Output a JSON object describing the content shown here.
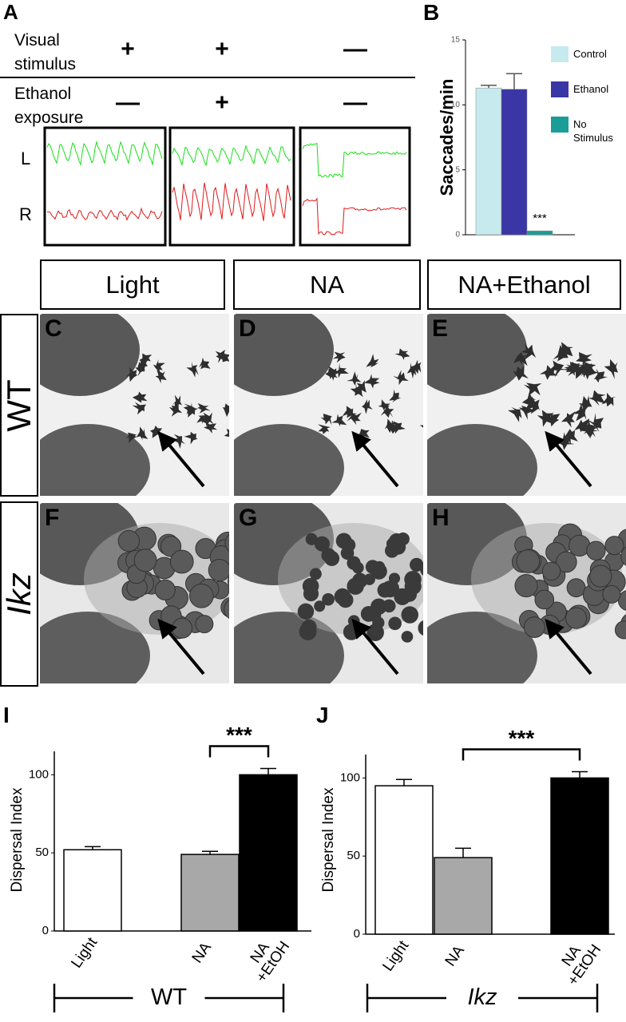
{
  "figure": {
    "panel_a": {
      "label": "A",
      "row_labels": [
        "Visual stimulus",
        "Ethanol exposure"
      ],
      "visual_stimulus": [
        "+",
        "+",
        "—"
      ],
      "ethanol_exposure": [
        "—",
        "+",
        "—"
      ],
      "trace_labels": [
        "L",
        "R"
      ]
    },
    "column_headers": [
      "Light",
      "NA",
      "NA+Ethanol"
    ],
    "row_labels": [
      "WT",
      "Ikz"
    ],
    "panel_labels": [
      "C",
      "D",
      "E",
      "F",
      "G",
      "H"
    ]
  },
  "chart_data": [
    {
      "type": "bar",
      "label": "B",
      "y_label": "Saccades/min",
      "ylim": [
        0,
        15
      ],
      "yticks": [
        0,
        5,
        10,
        15
      ],
      "series": [
        {
          "name": "Control",
          "color": "#c6eaee",
          "values": [
            11.3
          ],
          "errors": [
            0.2
          ]
        },
        {
          "name": "Ethanol",
          "color": "#3b36a6",
          "values": [
            11.2
          ],
          "errors": [
            1.2
          ]
        },
        {
          "name": "No Stimulus",
          "color": "#1b9d97",
          "values": [
            0.3
          ],
          "errors": [
            null
          ]
        }
      ],
      "annotation": "***"
    },
    {
      "type": "bar",
      "label": "I",
      "y_label": "Dispersal Index",
      "ylim": [
        0,
        115
      ],
      "yticks": [
        0,
        50,
        100
      ],
      "categories": [
        "Light",
        "NA",
        "NA +EtOH"
      ],
      "colors": [
        "#ffffff",
        "#a8a8a8",
        "#000000"
      ],
      "values": [
        52,
        49,
        100
      ],
      "errors": [
        2,
        2,
        4
      ],
      "annotation": "***",
      "group_label": "WT"
    },
    {
      "type": "bar",
      "label": "J",
      "y_label": "Dispersal Index",
      "ylim": [
        0,
        115
      ],
      "yticks": [
        0,
        50,
        100
      ],
      "categories": [
        "Light",
        "NA",
        "NA +EtOH"
      ],
      "colors": [
        "#ffffff",
        "#a8a8a8",
        "#000000"
      ],
      "values": [
        95,
        49,
        100
      ],
      "errors": [
        4,
        6,
        4
      ],
      "annotation": "***",
      "group_label": "Ikz"
    }
  ]
}
